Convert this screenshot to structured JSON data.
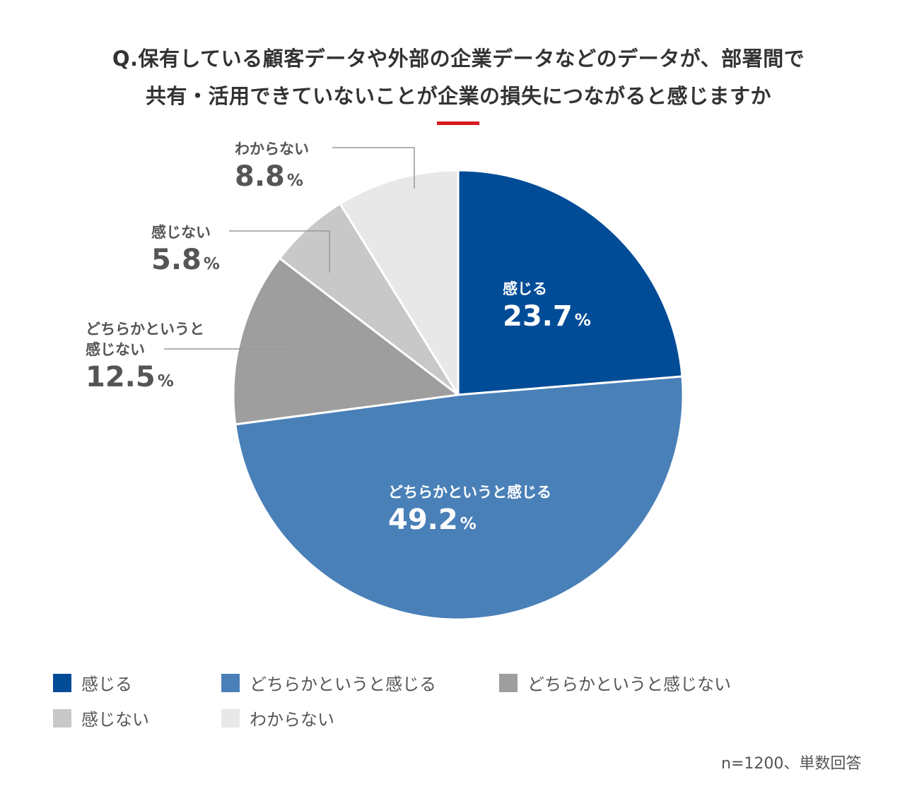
{
  "title": {
    "line1": "Q.保有している顧客データや外部の企業データなどのデータが、部署間で",
    "line2": "共有・活用できていないことが企業の損失につながると感じますか"
  },
  "colors": {
    "accent": "#d7191f",
    "text": "#333333",
    "leader": "#999999",
    "label_dark": "#555555",
    "label_light": "#ffffff"
  },
  "chart_data": {
    "type": "pie",
    "title": "Q.保有している顧客データや外部の企業データなどのデータが、部署間で共有・活用できていないことが企業の損失につながると感じますか",
    "unit": "%",
    "start": "top, clockwise",
    "slices": [
      {
        "label": "感じる",
        "label_lines": [
          "感じる"
        ],
        "value": 23.7,
        "value_text": "23.7",
        "color": "#004c97"
      },
      {
        "label": "どちらかというと感じる",
        "label_lines": [
          "どちらかというと感じる"
        ],
        "value": 49.2,
        "value_text": "49.2",
        "color": "#4a80b8"
      },
      {
        "label": "どちらかというと感じない",
        "label_lines": [
          "どちらかというと",
          "感じない"
        ],
        "value": 12.5,
        "value_text": "12.5",
        "color": "#9e9e9e"
      },
      {
        "label": "感じない",
        "label_lines": [
          "感じない"
        ],
        "value": 5.8,
        "value_text": "5.8",
        "color": "#c8c8c8"
      },
      {
        "label": "わからない",
        "label_lines": [
          "わからない"
        ],
        "value": 8.8,
        "value_text": "8.8",
        "color": "#e8e8e8"
      }
    ],
    "legend": [
      "感じる",
      "どちらかというと感じる",
      "どちらかというと感じない",
      "感じない",
      "わからない"
    ]
  },
  "footnote": "n=1200、単数回答"
}
